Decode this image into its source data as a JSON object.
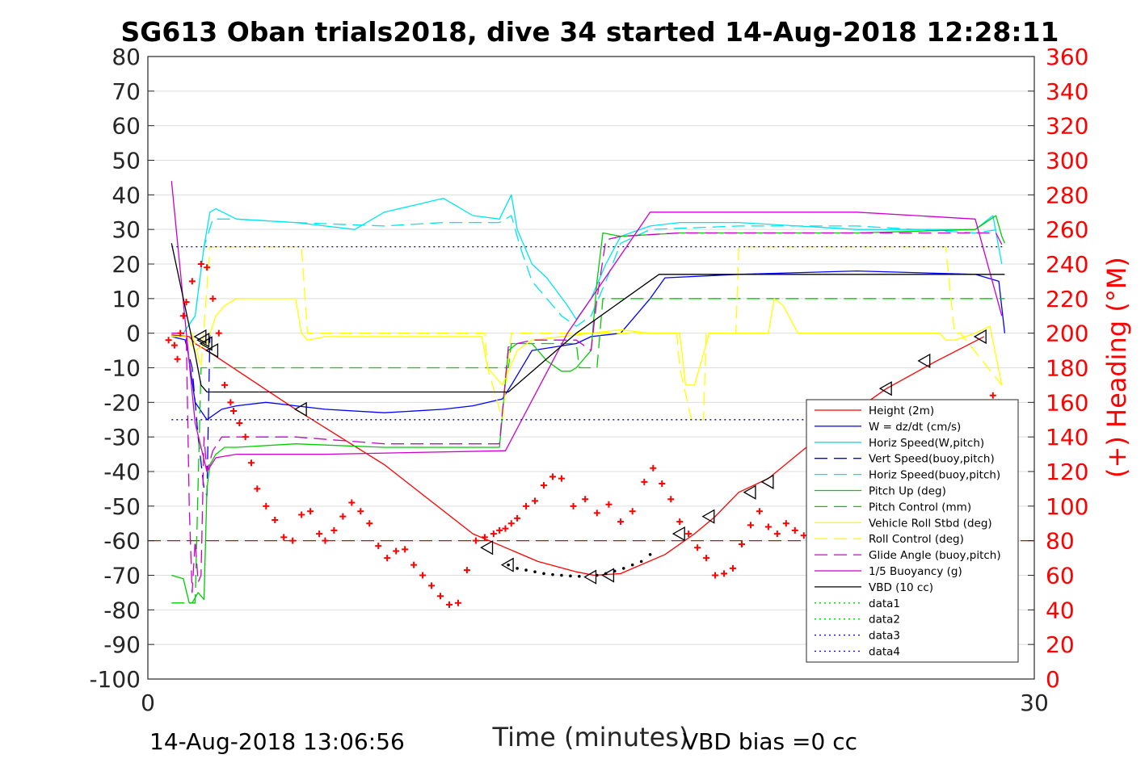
{
  "chart_data": {
    "type": "line",
    "title": "SG613 Oban trials2018, dive 34 started 14-Aug-2018 12:28:11",
    "xlabel": "Time (minutes)",
    "ylabel": "",
    "y2label": "(+) Heading (°M)",
    "xlim": [
      0,
      30
    ],
    "ylim": [
      -100,
      80
    ],
    "y2lim": [
      0,
      360
    ],
    "xticks": [
      "0",
      "30"
    ],
    "yticks": [
      "80",
      "70",
      "60",
      "50",
      "40",
      "30",
      "20",
      "10",
      "0",
      "-10",
      "-20",
      "-30",
      "-40",
      "-50",
      "-60",
      "-70",
      "-80",
      "-90",
      "-100"
    ],
    "y2ticks": [
      "360",
      "340",
      "320",
      "300",
      "280",
      "260",
      "240",
      "220",
      "200",
      "180",
      "160",
      "140",
      "120",
      "100",
      "80",
      "60",
      "40",
      "20",
      "0"
    ],
    "grid": true,
    "legend_position": "bottom-right",
    "footer_left": "14-Aug-2018 13:06:56",
    "footer_right": "VBD bias =0 cc",
    "series": [
      {
        "name": "Height (2m)",
        "color": "#ff0000",
        "style": "solid",
        "x": [
          0.8,
          1.4,
          1.6,
          2.0,
          5.0,
          8.0,
          11.0,
          12.1,
          13.2,
          14.5,
          15.1,
          16.0,
          17.5,
          18.5,
          19.2,
          20.0,
          21.0,
          23.0,
          25.0,
          26.7,
          28.3
        ],
        "y": [
          -0.5,
          -1,
          -3,
          -5,
          -22,
          -38,
          -58,
          -62,
          -66,
          -69,
          -70,
          -69.5,
          -64,
          -58,
          -53,
          -46,
          -42,
          -28,
          -16,
          -8,
          -1
        ]
      },
      {
        "name": "W = dz/dt (cm/s)",
        "color": "#0000ff",
        "style": "solid",
        "x": [
          0.8,
          1.3,
          1.6,
          2.0,
          2.5,
          3.0,
          4.0,
          5.0,
          6.0,
          8.0,
          10.0,
          11.0,
          12.0,
          12.3,
          13.0,
          14.5,
          15.0,
          16.0,
          17.0,
          17.5,
          20.0,
          24.0,
          28.0,
          28.8,
          29.0
        ],
        "y": [
          -1,
          -2,
          -20,
          -25,
          -22,
          -21,
          -20,
          -21,
          -22,
          -23,
          -22,
          -21,
          -19,
          -15,
          -5,
          -3,
          -1,
          0,
          10,
          16,
          17,
          18,
          17,
          15,
          0
        ]
      },
      {
        "name": "Horiz Speed(W,pitch)",
        "color": "#00e5ee",
        "style": "solid",
        "x": [
          0.8,
          1.2,
          1.6,
          1.9,
          2.1,
          2.3,
          3.0,
          5.0,
          7.0,
          8.0,
          9.0,
          10.0,
          11.0,
          11.9,
          12.3,
          12.5,
          13.0,
          13.5,
          14.2,
          14.5,
          15.0,
          15.5,
          16.0,
          17.0,
          18.0,
          20.0,
          24.0,
          28.0,
          28.6,
          28.9
        ],
        "y": [
          0,
          0,
          5,
          25,
          35,
          36,
          33,
          32,
          30,
          35,
          37,
          39,
          34,
          33,
          40,
          30,
          20,
          16,
          8,
          4,
          10,
          20,
          28,
          31,
          32,
          32,
          30,
          30,
          34,
          20
        ]
      },
      {
        "name": "Vert Speed(buoy,pitch)",
        "color": "#0000ff",
        "style": "dashed",
        "x": [
          0.8,
          1.2,
          1.5,
          1.7,
          1.9,
          2.0,
          2.1
        ],
        "y": [
          0,
          0,
          -10,
          -30,
          -45,
          -47,
          0
        ]
      },
      {
        "name": "Horiz Speed(buoy,pitch)",
        "color": "#00e5ee",
        "style": "dashed",
        "x": [
          0.8,
          1.2,
          1.6,
          1.9,
          2.2,
          3.0,
          5.0,
          8.0,
          10.0,
          11.9,
          12.3,
          12.6,
          13.0,
          13.5,
          14.0,
          14.5,
          15.0,
          15.5,
          16.0,
          17.0,
          20.0,
          24.0,
          28.0,
          28.8
        ],
        "y": [
          0,
          0,
          5,
          25,
          33,
          33,
          32,
          31,
          32,
          32,
          34,
          25,
          15,
          10,
          5,
          2,
          5,
          15,
          26,
          30,
          31,
          31,
          29,
          30
        ]
      },
      {
        "name": "Pitch Up (deg)",
        "color": "#00cc00",
        "style": "solid",
        "x": [
          0.8,
          1.2,
          1.4,
          1.5,
          1.7,
          1.9,
          2.0,
          2.1,
          2.3,
          2.6,
          3.0,
          5.0,
          8.0,
          10.0,
          11.9,
          12.2,
          12.5,
          13.0,
          13.5,
          14.0,
          14.3,
          14.5,
          15.0,
          15.2,
          15.4,
          16.0,
          18.0,
          20.0,
          24.0,
          28.0,
          28.7,
          28.9,
          29.0
        ],
        "y": [
          -70,
          -71,
          -78,
          -78,
          -75,
          -77,
          -45,
          -38,
          -35,
          -33,
          -33,
          -32,
          -33,
          -33,
          -33,
          -5,
          -3,
          -3,
          -8,
          -11,
          -11,
          -10,
          -5,
          15,
          29,
          28,
          29,
          29,
          29,
          30,
          34,
          28,
          26
        ]
      },
      {
        "name": "Pitch Control (mm)",
        "color": "#00cc00",
        "style": "dashed",
        "x": [
          0.8,
          1.6,
          1.8,
          2.0,
          12.2,
          12.3,
          14.5,
          14.6,
          15.2,
          15.4,
          29.0
        ],
        "y": [
          -78,
          -78,
          -10,
          -10,
          -10,
          -3,
          -3,
          -10,
          -10,
          10,
          10
        ]
      },
      {
        "name": "Vehicle Roll Stbd (deg)",
        "color": "#ffff00",
        "style": "solid",
        "x": [
          0.8,
          1.3,
          1.6,
          2.0,
          2.3,
          2.6,
          3.0,
          4.0,
          5.0,
          5.2,
          5.4,
          6.0,
          8.0,
          10.0,
          11.3,
          11.5,
          12.0,
          12.5,
          13.0,
          14.0,
          15.0,
          16.0,
          17.0,
          18.0,
          18.2,
          18.5,
          19.0,
          20.0,
          21.0,
          21.2,
          21.5,
          22.0,
          25.0,
          26.8,
          27.0,
          27.3,
          28.0,
          28.5,
          28.9
        ],
        "y": [
          -1,
          -1,
          -5,
          -3,
          5,
          8,
          10,
          10,
          10,
          0,
          -2,
          -1,
          -1,
          -1,
          -1,
          -10,
          -15,
          -5,
          -2,
          -1,
          0,
          1,
          0,
          0,
          -15,
          -15,
          0,
          0,
          0,
          10,
          8,
          0,
          0,
          0,
          -2,
          -2,
          0,
          2,
          -15
        ]
      },
      {
        "name": "Roll Control (deg)",
        "color": "#ffff00",
        "style": "dashed",
        "x": [
          0.8,
          1.5,
          1.8,
          2.1,
          2.4,
          5.0,
          5.2,
          5.4,
          11.4,
          11.5,
          12.0,
          12.3,
          17.9,
          18.0,
          18.4,
          18.8,
          18.9,
          19.9,
          20.0,
          20.3,
          26.5,
          26.6,
          27.0,
          27.3,
          27.5,
          28.9
        ],
        "y": [
          0,
          0,
          -10,
          25,
          25,
          25,
          25,
          0,
          0,
          -10,
          -25,
          0,
          0,
          -10,
          -25,
          -25,
          0,
          0,
          25,
          25,
          25,
          25,
          25,
          0,
          0,
          -15
        ]
      },
      {
        "name": "Glide Angle (buoy,pitch)",
        "color": "#cc00cc",
        "style": "dashed",
        "x": [
          0.8,
          1.3,
          1.4,
          1.5,
          1.6,
          1.7,
          1.8,
          1.9,
          2.0,
          2.2,
          2.5,
          3.0,
          5.0,
          8.0,
          10.0,
          11.9,
          12.2,
          12.5,
          13.0,
          14.5,
          15.0,
          15.2,
          15.5,
          16.0,
          18.0,
          24.0,
          28.0,
          28.7,
          29.0
        ],
        "y": [
          0,
          0,
          -50,
          -75,
          -60,
          -72,
          -70,
          -30,
          -40,
          -34,
          -30,
          -30,
          -30,
          -32,
          -32,
          -32,
          -4,
          -3,
          -2,
          -2,
          -5,
          10,
          27,
          28,
          29,
          29,
          29,
          29,
          24
        ]
      },
      {
        "name": "1/5 Buoyancy (g)",
        "color": "#cc00cc",
        "style": "solid",
        "x": [
          0.8,
          1.6,
          2.0,
          2.3,
          3.0,
          6.0,
          12.0,
          12.1,
          14.2,
          17.0,
          20.0,
          24.0,
          28.0,
          28.9
        ],
        "y": [
          44,
          -26,
          -40,
          -36,
          -35,
          -35,
          -34,
          -34,
          0,
          35,
          35,
          35,
          33,
          5
        ]
      },
      {
        "name": "VBD (10 cc)",
        "color": "#000000",
        "style": "solid",
        "x": [
          0.8,
          1.6,
          1.8,
          2.0,
          12.2,
          14.5,
          17.3,
          29.0
        ],
        "y": [
          26,
          -6,
          -15,
          -17,
          -17,
          0,
          17,
          17
        ]
      },
      {
        "name": "data1",
        "color": "#00cc00",
        "style": "dotted",
        "x": [],
        "y": []
      },
      {
        "name": "data2",
        "color": "#00cc00",
        "style": "dotted",
        "x": [],
        "y": []
      },
      {
        "name": "data3",
        "color": "#0000aa",
        "style": "dotted",
        "x": [
          0.8,
          29.0
        ],
        "y": [
          25,
          25
        ]
      },
      {
        "name": "data4",
        "color": "#0000aa",
        "style": "dotted",
        "x": [
          0.8,
          29.0
        ],
        "y": [
          -25,
          -25
        ]
      }
    ],
    "reference_lines": [
      {
        "color": "#aa0000",
        "style": "dashed",
        "y": -60
      }
    ],
    "heading": {
      "color": "#ff0000",
      "marker": "+",
      "axis": "right",
      "x": [
        0.7,
        0.9,
        1.0,
        1.1,
        1.2,
        1.3,
        1.5,
        1.8,
        2.0,
        2.2,
        2.4,
        2.6,
        2.8,
        2.9,
        3.1,
        3.3,
        3.5,
        3.7,
        4.0,
        4.3,
        4.6,
        4.9,
        5.2,
        5.5,
        5.8,
        6.0,
        6.3,
        6.6,
        6.9,
        7.2,
        7.5,
        7.8,
        8.1,
        8.4,
        8.7,
        9.0,
        9.3,
        9.6,
        9.9,
        10.2,
        10.5,
        10.8,
        11.1,
        11.4,
        11.7,
        11.9,
        12.1,
        12.3,
        12.5,
        12.8,
        13.1,
        13.4,
        13.7,
        14.0,
        14.4,
        14.8,
        15.2,
        15.6,
        16.0,
        16.4,
        16.8,
        17.1,
        17.4,
        17.7,
        18.0,
        18.3,
        18.6,
        18.9,
        19.2,
        19.5,
        19.8,
        20.1,
        20.4,
        20.7,
        21.0,
        21.3,
        21.6,
        21.9,
        22.2,
        22.5,
        28.6,
        28.8
      ],
      "y": [
        196,
        193,
        185,
        200,
        210,
        218,
        230,
        240,
        238,
        220,
        200,
        170,
        160,
        155,
        148,
        140,
        125,
        110,
        100,
        92,
        82,
        80,
        95,
        97,
        84,
        80,
        86,
        94,
        102,
        97,
        90,
        77,
        70,
        74,
        75,
        66,
        60,
        54,
        48,
        43,
        44,
        63,
        80,
        82,
        84,
        86,
        87,
        90,
        93,
        100,
        103,
        112,
        117,
        116,
        100,
        104,
        96,
        101,
        91,
        97,
        114,
        122,
        113,
        104,
        91,
        84,
        76,
        70,
        60,
        61,
        64,
        78,
        89,
        97,
        88,
        84,
        90,
        86,
        83,
        82,
        164,
        160
      ]
    },
    "triangles": {
      "x": [
        1.8,
        1.9,
        2.0,
        2.2,
        5.2,
        11.5,
        12.2,
        15.0,
        15.6,
        18.0,
        19.0,
        20.4,
        21.0,
        25.0,
        26.3,
        28.2
      ],
      "y": [
        -1,
        -2,
        -3,
        -5,
        -22,
        -62,
        -67,
        -70.5,
        -70,
        -58,
        -53,
        -46,
        -43,
        -16,
        -8,
        -1
      ]
    },
    "bottom_dots": {
      "x": [
        12.2,
        12.5,
        12.8,
        13.1,
        13.4,
        13.7,
        14.0,
        14.3,
        14.6,
        15.2,
        15.5,
        15.8,
        16.1,
        16.4,
        16.7,
        17.0
      ],
      "y": [
        -67,
        -68,
        -68.5,
        -69,
        -69.5,
        -69.8,
        -70,
        -70.2,
        -70.3,
        -70,
        -69.5,
        -68.8,
        -68,
        -67,
        -66,
        -64
      ]
    }
  }
}
